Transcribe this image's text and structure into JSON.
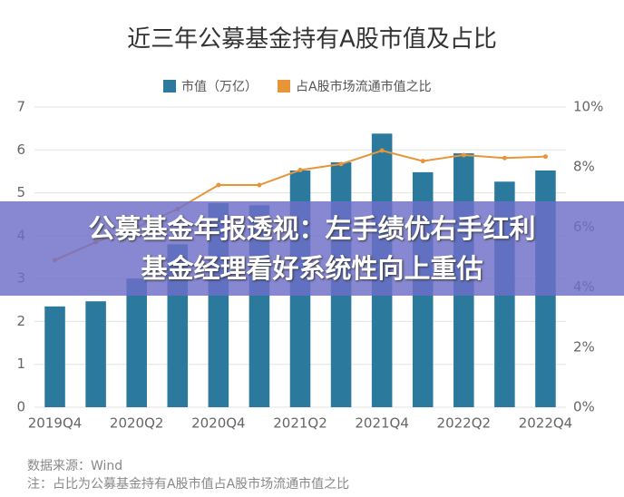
{
  "chart_data": {
    "type": "bar_line",
    "title": "近三年公募基金持有A股市值及占比",
    "categories": [
      "2019Q4",
      null,
      "2020Q2",
      null,
      "2020Q4",
      null,
      "2021Q2",
      null,
      "2021Q4",
      null,
      "2022Q2",
      null,
      "2022Q4"
    ],
    "series": [
      {
        "name": "市值（万亿）",
        "type": "bar",
        "color": "#2b7a9e",
        "values": [
          2.35,
          2.47,
          3.0,
          3.8,
          4.76,
          4.71,
          5.52,
          5.71,
          6.38,
          5.48,
          5.92,
          5.26,
          5.52
        ]
      },
      {
        "name": "占A股市场流通市值之比",
        "type": "line",
        "axis": "y2",
        "color": "#e8953a",
        "values": [
          4.9,
          5.5,
          6.0,
          6.6,
          7.4,
          7.4,
          7.9,
          8.1,
          8.55,
          8.2,
          8.4,
          8.3,
          8.35
        ]
      }
    ],
    "ylim": [
      0,
      7
    ],
    "yticks": [
      0,
      1,
      2,
      3,
      4,
      5,
      6,
      7
    ],
    "y2lim": [
      0,
      10
    ],
    "y2ticks": [
      {
        "value": 0,
        "label": "0%"
      },
      {
        "value": 2,
        "label": "2%"
      },
      {
        "value": 4,
        "label": "4%"
      },
      {
        "value": 6,
        "label": "6%"
      },
      {
        "value": 8,
        "label": "8%"
      },
      {
        "value": 10,
        "label": "10%"
      }
    ],
    "grid": true,
    "legend": "top",
    "source": "数据来源：Wind",
    "note": "注：占比为公募基金持有A股市值占A股市场流通市值之比"
  },
  "banner": {
    "line1": "公募基金年报透视：左手绩优右手红利",
    "line2": "基金经理看好系统性向上重估"
  }
}
